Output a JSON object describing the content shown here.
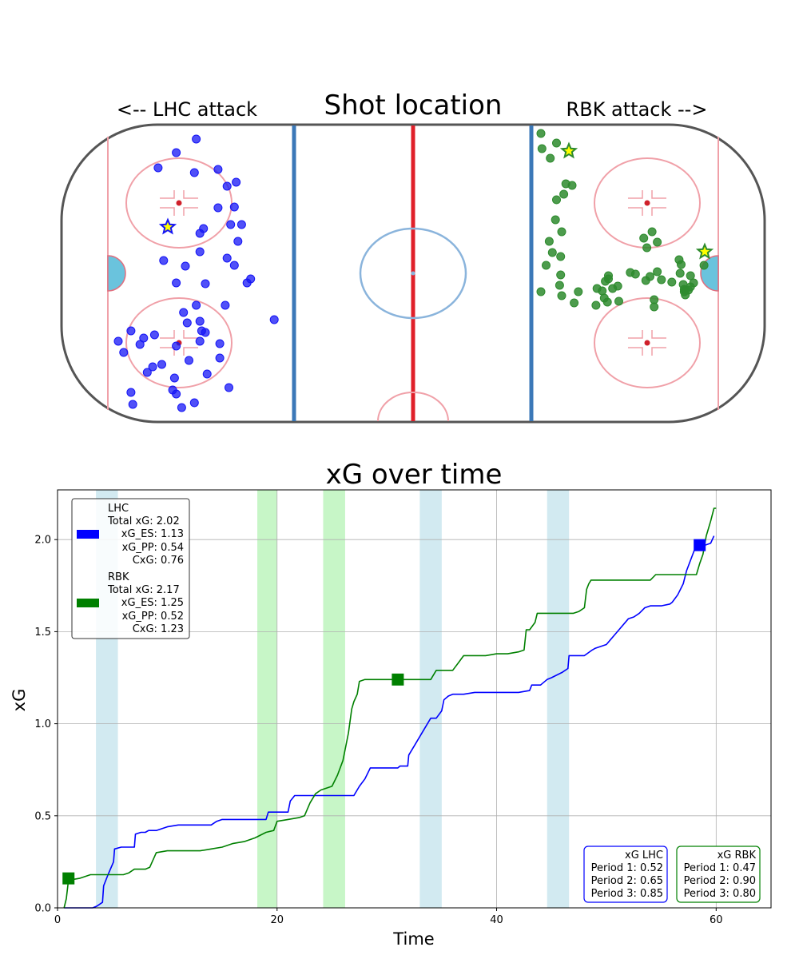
{
  "rink": {
    "title": "Shot location",
    "left_label": "<-- LHC attack",
    "right_label": "RBK attack -->",
    "lhc_color": "#1515f5",
    "rbk_color": "#2e8b2e",
    "lhc_shots": [
      [
        104,
        195
      ],
      [
        115,
        178
      ],
      [
        127,
        216
      ],
      [
        114,
        220
      ],
      [
        132,
        237
      ],
      [
        127,
        264
      ],
      [
        94,
        214
      ],
      [
        119,
        290
      ],
      [
        137,
        232
      ],
      [
        136,
        263
      ],
      [
        117,
        296
      ],
      [
        136,
        336
      ],
      [
        132,
        327
      ],
      [
        140,
        285
      ],
      [
        104,
        358
      ],
      [
        117,
        319
      ],
      [
        134,
        285
      ],
      [
        143,
        358
      ],
      [
        97,
        330
      ],
      [
        109,
        337
      ],
      [
        131,
        386
      ],
      [
        145,
        353
      ],
      [
        138,
        306
      ],
      [
        120,
        359
      ],
      [
        115,
        386
      ],
      [
        110,
        408
      ],
      [
        108,
        395
      ],
      [
        117,
        406
      ],
      [
        118,
        418
      ],
      [
        128,
        434
      ],
      [
        128,
        452
      ],
      [
        104,
        437
      ],
      [
        111,
        455
      ],
      [
        121,
        472
      ],
      [
        96,
        460
      ],
      [
        103,
        477
      ],
      [
        102,
        492
      ],
      [
        104,
        497
      ],
      [
        79,
        418
      ],
      [
        86,
        427
      ],
      [
        72,
        431
      ],
      [
        84,
        435
      ],
      [
        92,
        423
      ],
      [
        117,
        431
      ],
      [
        120,
        420
      ],
      [
        91,
        463
      ],
      [
        75,
        445
      ],
      [
        88,
        470
      ],
      [
        79,
        495
      ],
      [
        80,
        510
      ],
      [
        158,
        404
      ],
      [
        133,
        489
      ],
      [
        107,
        514
      ],
      [
        114,
        508
      ]
    ],
    "lhc_goal": [
      97,
      461
    ],
    "rbk_shots": [
      [
        290,
        194
      ],
      [
        282,
        182
      ],
      [
        281,
        163
      ],
      [
        296,
        175
      ],
      [
        296,
        246
      ],
      [
        303,
        239
      ],
      [
        305,
        226
      ],
      [
        311,
        228
      ],
      [
        295,
        271
      ],
      [
        301,
        286
      ],
      [
        289,
        298
      ],
      [
        292,
        312
      ],
      [
        300,
        317
      ],
      [
        300,
        340
      ],
      [
        286,
        328
      ],
      [
        301,
        366
      ],
      [
        299,
        353
      ],
      [
        313,
        375
      ],
      [
        317,
        361
      ],
      [
        335,
        357
      ],
      [
        340,
        360
      ],
      [
        343,
        348
      ],
      [
        346,
        341
      ],
      [
        346,
        345
      ],
      [
        345,
        374
      ],
      [
        356,
        373
      ],
      [
        355,
        354
      ],
      [
        367,
        337
      ],
      [
        382,
        347
      ],
      [
        386,
        342
      ],
      [
        390,
        371
      ],
      [
        390,
        380
      ],
      [
        393,
        336
      ],
      [
        397,
        346
      ],
      [
        415,
        338
      ],
      [
        419,
        358
      ],
      [
        419,
        361
      ],
      [
        428,
        350
      ],
      [
        425,
        355
      ],
      [
        438,
        328
      ],
      [
        425,
        341
      ],
      [
        414,
        321
      ],
      [
        418,
        352
      ],
      [
        420,
        359
      ],
      [
        420,
        365
      ],
      [
        423,
        359
      ],
      [
        416,
        327
      ],
      [
        407,
        349
      ],
      [
        383,
        306
      ],
      [
        380,
        294
      ],
      [
        388,
        286
      ],
      [
        393,
        299
      ],
      [
        372,
        339
      ],
      [
        350,
        357
      ],
      [
        342,
        369
      ],
      [
        334,
        378
      ],
      [
        281,
        361
      ]
    ],
    "rbk_goals": [
      [
        293,
        360
      ],
      [
        339,
        413
      ]
    ]
  },
  "chart_data": {
    "type": "line",
    "title": "xG over time",
    "xlabel": "Time",
    "ylabel": "xG",
    "xlim": [
      0,
      65
    ],
    "ylim": [
      0,
      2.27
    ],
    "x_ticks": [
      0,
      20,
      40,
      60
    ],
    "y_ticks": [
      0.0,
      0.5,
      1.0,
      1.5,
      2.0
    ],
    "grid": true,
    "legend_position": "upper left",
    "shaded_periods": [
      {
        "team": "LHC",
        "color": "#add8e6",
        "start": 3.5,
        "end": 5.5
      },
      {
        "team": "RBK",
        "color": "#90ee90",
        "start": 18.2,
        "end": 20.0
      },
      {
        "team": "RBK",
        "color": "#90ee90",
        "start": 24.2,
        "end": 26.2
      },
      {
        "team": "LHC",
        "color": "#add8e6",
        "start": 33.0,
        "end": 35.0
      },
      {
        "team": "LHC",
        "color": "#add8e6",
        "start": 44.6,
        "end": 46.6
      }
    ],
    "series": [
      {
        "name": "LHC",
        "color": "#0000ff",
        "points": [
          [
            0.6,
            0
          ],
          [
            3.2,
            0
          ],
          [
            3.6,
            0.01
          ],
          [
            4.1,
            0.03
          ],
          [
            4.2,
            0.12
          ],
          [
            4.6,
            0.18
          ],
          [
            5.1,
            0.25
          ],
          [
            5.2,
            0.32
          ],
          [
            5.8,
            0.33
          ],
          [
            6.1,
            0.33
          ],
          [
            7.0,
            0.33
          ],
          [
            7.1,
            0.4
          ],
          [
            7.6,
            0.41
          ],
          [
            8.0,
            0.41
          ],
          [
            8.3,
            0.42
          ],
          [
            9.0,
            0.42
          ],
          [
            10.0,
            0.44
          ],
          [
            11.0,
            0.45
          ],
          [
            12.0,
            0.45
          ],
          [
            13.0,
            0.45
          ],
          [
            14.0,
            0.45
          ],
          [
            14.5,
            0.47
          ],
          [
            15.0,
            0.48
          ],
          [
            16.0,
            0.48
          ],
          [
            18.0,
            0.48
          ],
          [
            18.2,
            0.48
          ],
          [
            19.0,
            0.48
          ],
          [
            19.2,
            0.52
          ],
          [
            20.0,
            0.52
          ],
          [
            21.0,
            0.52
          ],
          [
            21.2,
            0.58
          ],
          [
            21.6,
            0.61
          ],
          [
            22.0,
            0.61
          ],
          [
            24.0,
            0.61
          ],
          [
            25.0,
            0.61
          ],
          [
            27.0,
            0.61
          ],
          [
            27.5,
            0.66
          ],
          [
            28.0,
            0.7
          ],
          [
            28.5,
            0.76
          ],
          [
            30.0,
            0.76
          ],
          [
            31.0,
            0.76
          ],
          [
            31.2,
            0.77
          ],
          [
            31.9,
            0.77
          ],
          [
            32.0,
            0.83
          ],
          [
            32.5,
            0.88
          ],
          [
            33.0,
            0.93
          ],
          [
            34.0,
            1.03
          ],
          [
            34.5,
            1.03
          ],
          [
            35.0,
            1.07
          ],
          [
            35.2,
            1.13
          ],
          [
            35.6,
            1.15
          ],
          [
            36.0,
            1.16
          ],
          [
            37.0,
            1.16
          ],
          [
            38.0,
            1.17
          ],
          [
            39.0,
            1.17
          ],
          [
            40.0,
            1.17
          ],
          [
            42.0,
            1.17
          ],
          [
            43.0,
            1.18
          ],
          [
            43.2,
            1.21
          ],
          [
            44.0,
            1.21
          ],
          [
            44.6,
            1.24
          ],
          [
            45.0,
            1.25
          ],
          [
            46.0,
            1.28
          ],
          [
            46.5,
            1.3
          ],
          [
            46.6,
            1.37
          ],
          [
            48.0,
            1.37
          ],
          [
            48.7,
            1.4
          ],
          [
            49.0,
            1.41
          ],
          [
            50.0,
            1.43
          ],
          [
            51.0,
            1.5
          ],
          [
            52.0,
            1.57
          ],
          [
            52.5,
            1.58
          ],
          [
            53.0,
            1.6
          ],
          [
            53.5,
            1.63
          ],
          [
            54.0,
            1.64
          ],
          [
            55.0,
            1.64
          ],
          [
            55.8,
            1.65
          ],
          [
            56.0,
            1.66
          ],
          [
            56.5,
            1.7
          ],
          [
            57.0,
            1.76
          ],
          [
            57.3,
            1.83
          ],
          [
            58.0,
            1.94
          ],
          [
            58.5,
            1.97
          ],
          [
            59.0,
            1.97
          ],
          [
            59.5,
            1.98
          ],
          [
            59.8,
            2.02
          ]
        ]
      },
      {
        "name": "RBK",
        "color": "#008000",
        "points": [
          [
            0.6,
            0
          ],
          [
            0.8,
            0.05
          ],
          [
            1.0,
            0.15
          ],
          [
            2.0,
            0.16
          ],
          [
            3.0,
            0.18
          ],
          [
            4.0,
            0.18
          ],
          [
            5.0,
            0.18
          ],
          [
            6.0,
            0.18
          ],
          [
            6.5,
            0.19
          ],
          [
            7.0,
            0.21
          ],
          [
            8.0,
            0.21
          ],
          [
            8.4,
            0.22
          ],
          [
            9.0,
            0.3
          ],
          [
            10.0,
            0.31
          ],
          [
            11.0,
            0.31
          ],
          [
            12.0,
            0.31
          ],
          [
            13.0,
            0.31
          ],
          [
            14.0,
            0.32
          ],
          [
            15.0,
            0.33
          ],
          [
            16.0,
            0.35
          ],
          [
            17.0,
            0.36
          ],
          [
            18.0,
            0.38
          ],
          [
            19.0,
            0.41
          ],
          [
            19.7,
            0.42
          ],
          [
            20.0,
            0.47
          ],
          [
            21.0,
            0.48
          ],
          [
            22.0,
            0.49
          ],
          [
            22.5,
            0.5
          ],
          [
            23.0,
            0.57
          ],
          [
            23.5,
            0.62
          ],
          [
            24.0,
            0.64
          ],
          [
            25.0,
            0.66
          ],
          [
            25.5,
            0.72
          ],
          [
            26.0,
            0.8
          ],
          [
            26.5,
            0.95
          ],
          [
            26.8,
            1.08
          ],
          [
            27.0,
            1.12
          ],
          [
            27.3,
            1.16
          ],
          [
            27.5,
            1.23
          ],
          [
            28.0,
            1.24
          ],
          [
            30.0,
            1.24
          ],
          [
            31.0,
            1.24
          ],
          [
            32.0,
            1.24
          ],
          [
            33.0,
            1.24
          ],
          [
            34.0,
            1.24
          ],
          [
            34.5,
            1.29
          ],
          [
            35.0,
            1.29
          ],
          [
            36.0,
            1.29
          ],
          [
            36.5,
            1.33
          ],
          [
            37.0,
            1.37
          ],
          [
            38.0,
            1.37
          ],
          [
            39.0,
            1.37
          ],
          [
            40.0,
            1.38
          ],
          [
            41.0,
            1.38
          ],
          [
            42.0,
            1.39
          ],
          [
            42.5,
            1.4
          ],
          [
            42.7,
            1.51
          ],
          [
            43.0,
            1.51
          ],
          [
            43.5,
            1.55
          ],
          [
            43.7,
            1.6
          ],
          [
            45.0,
            1.6
          ],
          [
            46.0,
            1.6
          ],
          [
            47.0,
            1.6
          ],
          [
            47.5,
            1.61
          ],
          [
            48.0,
            1.63
          ],
          [
            48.2,
            1.73
          ],
          [
            48.4,
            1.76
          ],
          [
            48.6,
            1.78
          ],
          [
            50.0,
            1.78
          ],
          [
            51.0,
            1.78
          ],
          [
            52.0,
            1.78
          ],
          [
            53.0,
            1.78
          ],
          [
            54.0,
            1.78
          ],
          [
            54.5,
            1.81
          ],
          [
            55.0,
            1.81
          ],
          [
            56.0,
            1.81
          ],
          [
            57.0,
            1.81
          ],
          [
            57.5,
            1.81
          ],
          [
            58.0,
            1.81
          ],
          [
            58.2,
            1.81
          ],
          [
            58.5,
            1.87
          ],
          [
            58.8,
            1.92
          ],
          [
            59.1,
            2.02
          ],
          [
            59.5,
            2.1
          ],
          [
            59.8,
            2.17
          ],
          [
            60.0,
            2.17
          ]
        ]
      }
    ],
    "goal_markers": [
      {
        "team": "RBK",
        "x": 1.0,
        "y": 0.16,
        "color": "#008000"
      },
      {
        "team": "RBK",
        "x": 31.0,
        "y": 1.24,
        "color": "#008000"
      },
      {
        "team": "LHC",
        "x": 58.5,
        "y": 1.97,
        "color": "#0000ff"
      }
    ],
    "legend": [
      {
        "team": "LHC",
        "color": "#0000ff",
        "lines": [
          "LHC",
          "Total xG: 2.02",
          "xG_ES: 1.13",
          "xG_PP: 0.54",
          "CxG: 0.76"
        ]
      },
      {
        "team": "RBK",
        "color": "#008000",
        "lines": [
          "RBK",
          "Total xG: 2.17",
          "xG_ES: 1.25",
          "xG_PP: 0.52",
          "CxG: 1.23"
        ]
      }
    ],
    "period_boxes": [
      {
        "team": "LHC",
        "color": "#0000ff",
        "lines": [
          "xG LHC",
          "Period 1: 0.52",
          "Period 2: 0.65",
          "Period 3: 0.85"
        ]
      },
      {
        "team": "RBK",
        "color": "#008000",
        "lines": [
          "xG RBK",
          "Period 1: 0.47",
          "Period 2: 0.90",
          "Period 3: 0.80"
        ]
      }
    ]
  }
}
